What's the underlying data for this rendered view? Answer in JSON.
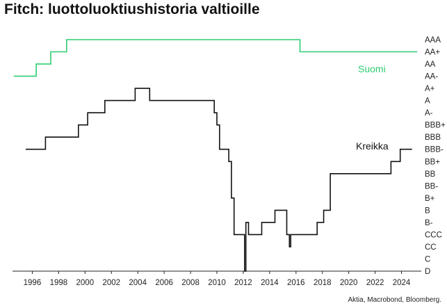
{
  "chart_data": {
    "type": "line",
    "title": "Fitch: luottoluoktiushistoria valtioille",
    "source": "Aktia, Macrobond, Bloomberg.",
    "x_ticks": [
      1996,
      1998,
      2000,
      2002,
      2004,
      2006,
      2008,
      2010,
      2012,
      2014,
      2016,
      2018,
      2020,
      2022,
      2024
    ],
    "xlim": [
      1994.5,
      2025.5
    ],
    "y_ticks": [
      "AAA",
      "AA+",
      "AA",
      "AA-",
      "A+",
      "A",
      "A-",
      "BBB+",
      "BBB",
      "BBB-",
      "BB+",
      "BB",
      "BB-",
      "B+",
      "B",
      "B-",
      "CCC",
      "CC",
      "C",
      "D"
    ],
    "legend": "inline",
    "grid": false,
    "series": [
      {
        "name": "Suomi",
        "color": "#2ecc71",
        "step": true,
        "points": [
          [
            1994.6,
            "AA-"
          ],
          [
            1996.3,
            "AA"
          ],
          [
            1997.4,
            "AA+"
          ],
          [
            1998.6,
            "AAA"
          ],
          [
            2016.3,
            "AA+"
          ],
          [
            2025.2,
            "AA+"
          ]
        ]
      },
      {
        "name": "Kreikka",
        "color": "#111111",
        "step": true,
        "points": [
          [
            1995.5,
            "BBB-"
          ],
          [
            1997.0,
            "BBB"
          ],
          [
            1999.5,
            "BBB+"
          ],
          [
            2000.2,
            "A-"
          ],
          [
            2001.5,
            "A"
          ],
          [
            2003.8,
            "A+"
          ],
          [
            2004.9,
            "A"
          ],
          [
            2009.8,
            "A-"
          ],
          [
            2010.0,
            "BBB+"
          ],
          [
            2010.2,
            "BBB-"
          ],
          [
            2010.9,
            "BB+"
          ],
          [
            2011.1,
            "B+"
          ],
          [
            2011.3,
            "CCC"
          ],
          [
            2012.1,
            "D"
          ],
          [
            2012.2,
            "B-"
          ],
          [
            2012.4,
            "CCC"
          ],
          [
            2013.4,
            "B-"
          ],
          [
            2014.4,
            "B"
          ],
          [
            2015.3,
            "CCC"
          ],
          [
            2015.5,
            "CC"
          ],
          [
            2015.6,
            "CCC"
          ],
          [
            2017.6,
            "B-"
          ],
          [
            2018.1,
            "B"
          ],
          [
            2018.6,
            "BB"
          ],
          [
            2020.1,
            "BB"
          ],
          [
            2023.2,
            "BB+"
          ],
          [
            2023.9,
            "BBB-"
          ],
          [
            2024.8,
            "BBB-"
          ]
        ]
      }
    ]
  }
}
